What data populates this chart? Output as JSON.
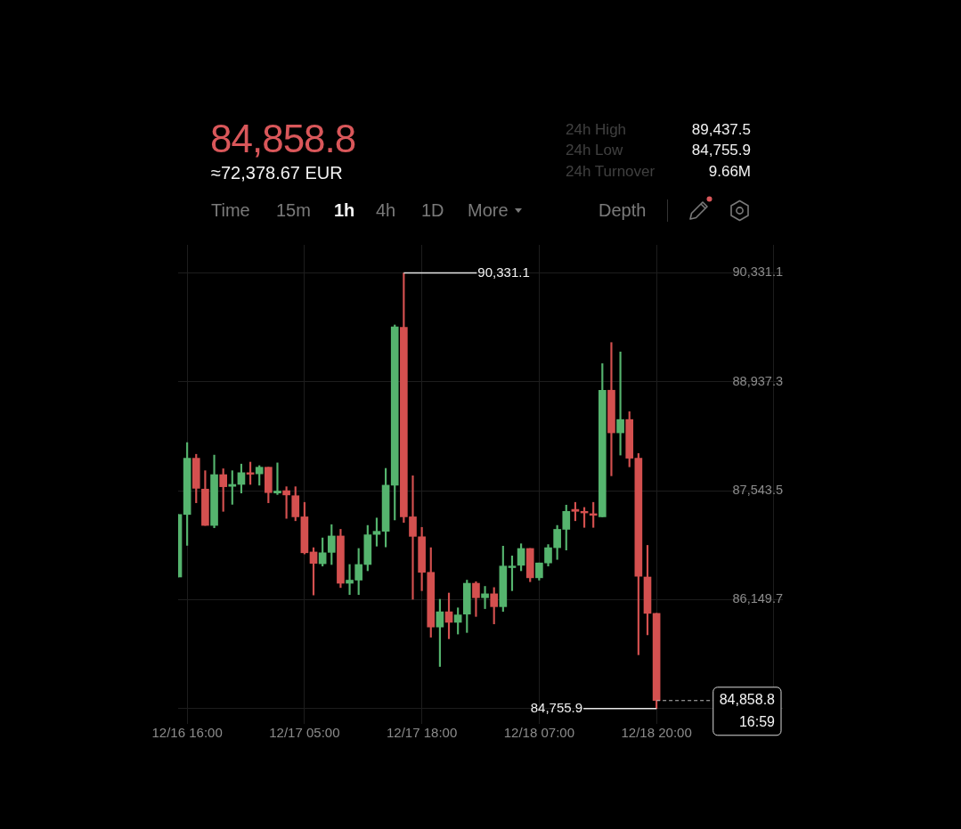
{
  "chart_data": {
    "type": "candlestick",
    "title": "84,858.8",
    "subtitle": "≈72,378.67 EUR",
    "x": [
      "--12-16T15:00",
      "--12-16T16:00",
      "--12-16T17:00",
      "--12-16T18:00",
      "--12-16T19:00",
      "--12-16T20:00",
      "--12-16T21:00",
      "--12-16T22:00",
      "--12-16T23:00",
      "--12-17T00:00",
      "--12-17T01:00",
      "--12-17T02:00",
      "--12-17T03:00",
      "--12-17T04:00",
      "--12-17T05:00",
      "--12-17T06:00",
      "--12-17T07:00",
      "--12-17T08:00",
      "--12-17T09:00",
      "--12-17T10:00",
      "--12-17T11:00",
      "--12-17T12:00",
      "--12-17T13:00",
      "--12-17T14:00",
      "--12-17T15:00",
      "--12-17T16:00",
      "--12-17T17:00",
      "--12-17T18:00",
      "--12-17T19:00",
      "--12-17T20:00",
      "--12-17T21:00",
      "--12-17T22:00",
      "--12-17T23:00",
      "--12-18T00:00",
      "--12-18T01:00",
      "--12-18T02:00",
      "--12-18T03:00",
      "--12-18T04:00",
      "--12-18T05:00",
      "--12-18T06:00",
      "--12-18T07:00",
      "--12-18T08:00",
      "--12-18T09:00",
      "--12-18T10:00",
      "--12-18T11:00",
      "--12-18T12:00",
      "--12-18T13:00",
      "--12-18T14:00",
      "--12-18T15:00",
      "--12-18T16:00",
      "--12-18T17:00",
      "--12-18T18:00",
      "--12-18T19:00",
      "--12-18T20:00"
    ],
    "ohlc": [
      [
        86440,
        87240,
        86440,
        87240
      ],
      [
        87240,
        88160,
        86845,
        87960
      ],
      [
        87960,
        88010,
        87390,
        87575
      ],
      [
        87565,
        87800,
        87100,
        87100
      ],
      [
        87100,
        88000,
        87070,
        87750
      ],
      [
        87750,
        87825,
        87280,
        87595
      ],
      [
        87600,
        87800,
        87370,
        87625
      ],
      [
        87625,
        87885,
        87515,
        87775
      ],
      [
        87775,
        87910,
        87625,
        87755
      ],
      [
        87760,
        87865,
        87615,
        87845
      ],
      [
        87845,
        87845,
        87390,
        87520
      ],
      [
        87515,
        87900,
        87495,
        87540
      ],
      [
        87545,
        87595,
        87190,
        87490
      ],
      [
        87480,
        87595,
        87160,
        87210
      ],
      [
        87210,
        87395,
        86735,
        86750
      ],
      [
        86760,
        86815,
        86210,
        86615
      ],
      [
        86610,
        86940,
        86580,
        86750
      ],
      [
        86755,
        87110,
        86600,
        86965
      ],
      [
        86965,
        87050,
        86305,
        86360
      ],
      [
        86360,
        86600,
        86215,
        86400
      ],
      [
        86400,
        86805,
        86215,
        86600
      ],
      [
        86600,
        87100,
        86520,
        86980
      ],
      [
        86985,
        87195,
        86835,
        87025
      ],
      [
        87025,
        87830,
        86825,
        87615
      ],
      [
        87615,
        89665,
        87170,
        89640
      ],
      [
        89635,
        90331.1,
        87140,
        87210
      ],
      [
        87210,
        87735,
        86155,
        86960
      ],
      [
        86955,
        87075,
        86265,
        86500
      ],
      [
        86500,
        86815,
        85670,
        85800
      ],
      [
        85800,
        86155,
        85295,
        85995
      ],
      [
        85995,
        86235,
        85650,
        85860
      ],
      [
        85860,
        86045,
        85710,
        85955
      ],
      [
        85965,
        86400,
        85730,
        86360
      ],
      [
        86360,
        86380,
        85935,
        86175
      ],
      [
        86175,
        86320,
        86035,
        86225
      ],
      [
        86225,
        86305,
        85840,
        86060
      ],
      [
        86060,
        86835,
        86000,
        86580
      ],
      [
        86560,
        86710,
        86265,
        86580
      ],
      [
        86590,
        86865,
        86520,
        86805
      ],
      [
        86805,
        86805,
        86380,
        86430
      ],
      [
        86430,
        86620,
        86400,
        86620
      ],
      [
        86620,
        86855,
        86580,
        86815
      ],
      [
        86815,
        87100,
        86665,
        87050
      ],
      [
        87050,
        87360,
        86785,
        87280
      ],
      [
        87305,
        87395,
        87160,
        87280
      ],
      [
        87280,
        87330,
        87075,
        87260
      ],
      [
        87250,
        87395,
        87075,
        87230
      ],
      [
        87210,
        89170,
        87210,
        88830
      ],
      [
        88830,
        89440,
        87735,
        88285
      ],
      [
        88285,
        89320,
        88000,
        88455
      ],
      [
        88455,
        88555,
        87850,
        87960
      ],
      [
        87960,
        88020,
        85445,
        86450
      ],
      [
        86440,
        86845,
        85700,
        85975
      ],
      [
        85975,
        85975,
        84755.9,
        84858.8
      ]
    ],
    "colors": [
      "#55b46e",
      "#55b46e",
      "#d4504f",
      "#d4504f",
      "#55b46e",
      "#d4504f",
      "#55b46e",
      "#55b46e",
      "#d4504f",
      "#55b46e",
      "#d4504f",
      "#55b46e",
      "#d4504f",
      "#d4504f",
      "#d4504f",
      "#d4504f",
      "#55b46e",
      "#55b46e",
      "#d4504f",
      "#55b46e",
      "#55b46e",
      "#55b46e",
      "#55b46e",
      "#55b46e",
      "#55b46e",
      "#d4504f",
      "#d4504f",
      "#d4504f",
      "#d4504f",
      "#55b46e",
      "#d4504f",
      "#55b46e",
      "#55b46e",
      "#d4504f",
      "#55b46e",
      "#d4504f",
      "#55b46e",
      "#55b46e",
      "#55b46e",
      "#d4504f",
      "#55b46e",
      "#55b46e",
      "#55b46e",
      "#55b46e",
      "#d4504f",
      "#d4504f",
      "#d4504f",
      "#55b46e",
      "#d4504f",
      "#55b46e",
      "#d4504f",
      "#d4504f",
      "#d4504f",
      "#d4504f"
    ],
    "xlim": [
      "--12-16T15:00",
      "--12-19T10:00"
    ],
    "xticks": [
      {
        "value": "--12-16T16:00",
        "label": "12/16 16:00"
      },
      {
        "value": "--12-17T05:00",
        "label": "12/17 05:00"
      },
      {
        "value": "--12-17T18:00",
        "label": "12/17 18:00"
      },
      {
        "value": "--12-18T07:00",
        "label": "12/18 07:00"
      },
      {
        "value": "--12-18T20:00",
        "label": "12/18 20:00"
      },
      {
        "value": "--12-19T09:00",
        "label": null
      }
    ],
    "ylim": [
      84560,
      90690
    ],
    "yticks": [
      {
        "value": 90331.1,
        "label": "90,331.1"
      },
      {
        "value": 88937.3,
        "label": "88,937.3"
      },
      {
        "value": 87543.5,
        "label": "87,543.5"
      },
      {
        "value": 86149.7,
        "label": "86,149.7"
      },
      {
        "value": 84755.9,
        "label": null
      }
    ],
    "grid": true,
    "ref_lines": [
      {
        "axis": "y",
        "value": 84858.8,
        "label": "84,858.8\n16:59",
        "line_style": "dashed"
      }
    ],
    "annotations": [
      {
        "text": "90,331.1",
        "x": "--12-17T16:00",
        "y": 90331.1
      },
      {
        "text": "84,755.9",
        "x": "--12-18T20:00",
        "y": 84755.9
      },
      "24h High",
      "89,437.5",
      "24h Low",
      "84,755.9",
      "24h Turnover",
      "9.66M",
      "Time",
      "15m",
      "1h",
      "4h",
      "1D",
      "More",
      "Depth"
    ]
  }
}
